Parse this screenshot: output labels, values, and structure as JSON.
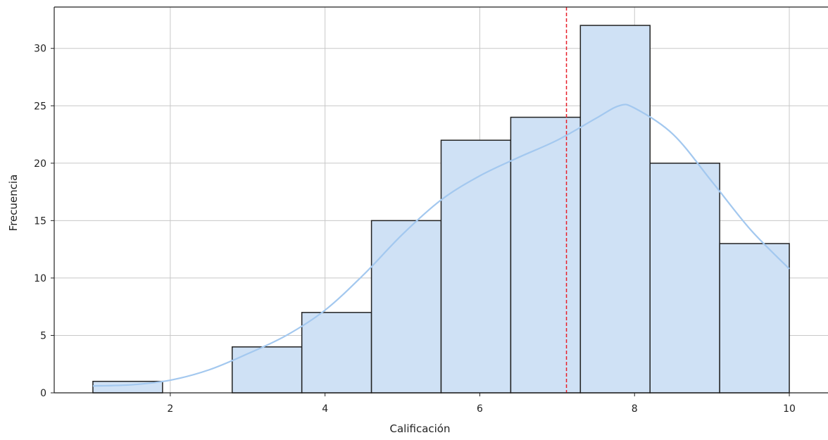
{
  "chart_data": {
    "type": "bar",
    "xlabel": "Calificación",
    "ylabel": "Frecuencia",
    "xlim": [
      0.5,
      10.5
    ],
    "ylim": [
      0,
      33.6
    ],
    "x_ticks": [
      2,
      4,
      6,
      8,
      10
    ],
    "y_ticks": [
      0,
      5,
      10,
      15,
      20,
      25,
      30
    ],
    "grid": true,
    "bins": [
      {
        "start": 1.0,
        "end": 1.9,
        "count": 1
      },
      {
        "start": 1.9,
        "end": 2.8,
        "count": 0
      },
      {
        "start": 2.8,
        "end": 3.7,
        "count": 4
      },
      {
        "start": 3.7,
        "end": 4.6,
        "count": 7
      },
      {
        "start": 4.6,
        "end": 5.5,
        "count": 15
      },
      {
        "start": 5.5,
        "end": 6.4,
        "count": 22
      },
      {
        "start": 6.4,
        "end": 7.3,
        "count": 24
      },
      {
        "start": 7.3,
        "end": 8.2,
        "count": 32
      },
      {
        "start": 8.2,
        "end": 9.1,
        "count": 20
      },
      {
        "start": 9.1,
        "end": 10.0,
        "count": 13
      }
    ],
    "kde_curve": {
      "x": [
        1.0,
        1.5,
        2.0,
        2.5,
        3.0,
        3.5,
        4.0,
        4.5,
        5.0,
        5.5,
        6.0,
        6.5,
        7.0,
        7.5,
        7.8,
        8.0,
        8.5,
        9.0,
        9.5,
        10.0
      ],
      "y": [
        0.6,
        0.7,
        1.1,
        2.0,
        3.4,
        5.0,
        7.2,
        10.3,
        13.8,
        16.8,
        18.9,
        20.5,
        22.0,
        23.9,
        25.0,
        24.8,
        22.5,
        18.4,
        14.2,
        10.8
      ]
    },
    "mean_line": {
      "x": 7.12
    },
    "colors": {
      "bar_fill": "#cfe1f5",
      "bar_edge": "#222222",
      "kde": "#a3c8ef",
      "mean_line": "#e8202a",
      "grid": "#c8c8c8"
    }
  }
}
